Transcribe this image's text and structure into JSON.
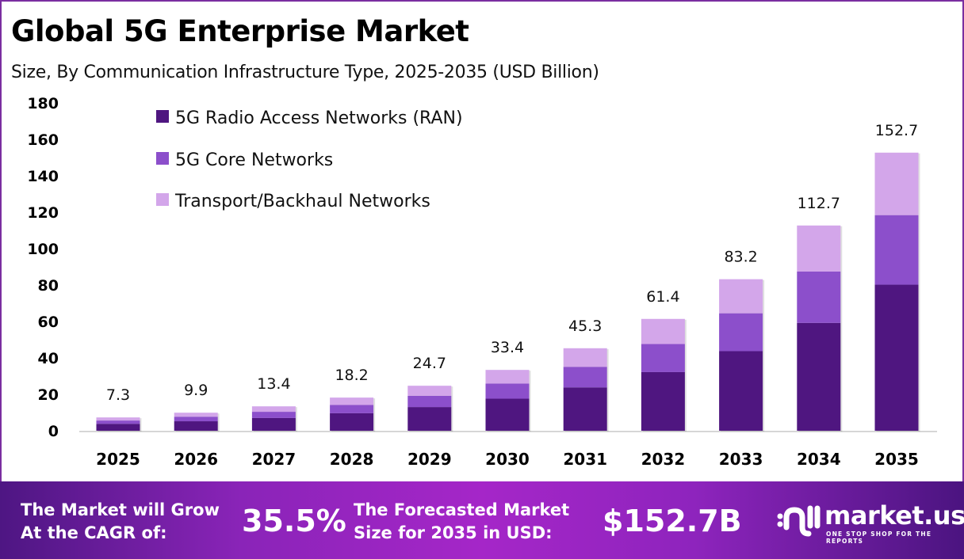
{
  "header": {
    "title": "Global 5G Enterprise Market",
    "subtitle": "Size, By Communication Infrastructure Type, 2025-2035 (USD Billion)"
  },
  "chart_data": {
    "type": "bar",
    "stacked": true,
    "title": "Global 5G Enterprise Market",
    "subtitle": "Size, By Communication Infrastructure Type, 2025-2035 (USD Billion)",
    "xlabel": "",
    "ylabel": "",
    "ylim": [
      0,
      180
    ],
    "yticks": [
      0,
      20,
      40,
      60,
      80,
      100,
      120,
      140,
      160,
      180
    ],
    "grid": false,
    "legend_position": "top-left",
    "categories": [
      "2025",
      "2026",
      "2027",
      "2028",
      "2029",
      "2030",
      "2031",
      "2032",
      "2033",
      "2034",
      "2035"
    ],
    "totals": [
      7.3,
      9.9,
      13.4,
      18.2,
      24.7,
      33.4,
      45.3,
      61.4,
      83.2,
      112.7,
      152.7
    ],
    "total_labels": [
      "7.3",
      "9.9",
      "13.4",
      "18.2",
      "24.7",
      "33.4",
      "45.3",
      "61.4",
      "83.2",
      "112.7",
      "152.7"
    ],
    "series": [
      {
        "name": "5G Radio Access Networks (RAN)",
        "color": "#4f1680",
        "values": [
          3.8,
          5.2,
          7.0,
          9.6,
          13.0,
          17.6,
          23.8,
          32.2,
          43.7,
          59.2,
          80.2
        ]
      },
      {
        "name": "5G Core Networks",
        "color": "#8c4fcb",
        "values": [
          1.8,
          2.5,
          3.4,
          4.6,
          6.2,
          8.3,
          11.3,
          15.4,
          20.8,
          28.2,
          38.2
        ]
      },
      {
        "name": "Transport/Backhaul Networks",
        "color": "#d3a6ea",
        "values": [
          1.7,
          2.2,
          3.0,
          4.0,
          5.5,
          7.5,
          10.2,
          13.8,
          18.7,
          25.3,
          34.3
        ]
      }
    ]
  },
  "footer": {
    "cagr_label_line1": "The Market will Grow",
    "cagr_label_line2": "At the CAGR of:",
    "cagr_value": "35.5%",
    "forecast_label_line1": "The Forecasted Market",
    "forecast_label_line2": "Size for 2035 in USD:",
    "forecast_value": "$152.7B",
    "brand_name": "market.us",
    "brand_tagline": "ONE STOP SHOP FOR THE REPORTS"
  }
}
